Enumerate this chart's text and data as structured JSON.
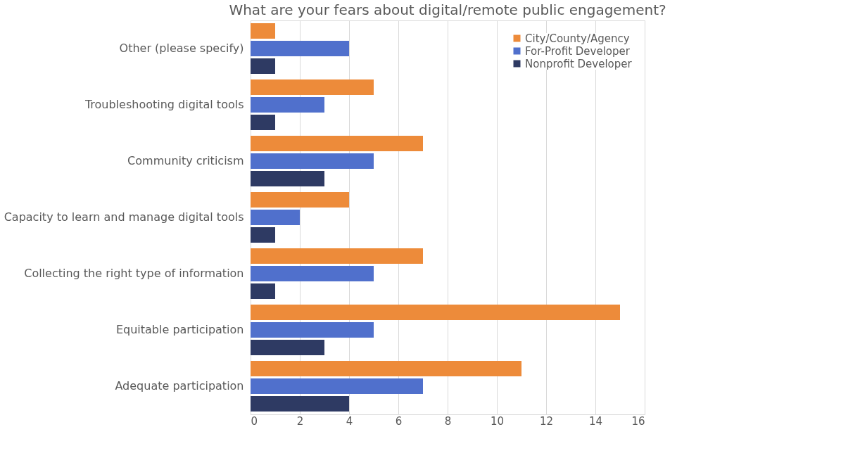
{
  "chart_data": {
    "type": "bar",
    "orientation": "horizontal",
    "title": "What are your fears about digital/remote public engagement?",
    "categories": [
      "Other (please specify)",
      "Troubleshooting digital tools",
      "Community criticism",
      "Capacity to learn and manage digital tools",
      "Collecting the right type of information",
      "Equitable participation",
      "Adequate participation"
    ],
    "series": [
      {
        "name": "City/County/Agency",
        "color": "#ed8b3a",
        "values": [
          1,
          5,
          7,
          4,
          7,
          15,
          11
        ]
      },
      {
        "name": "For-Profit Developer",
        "color": "#5070cc",
        "values": [
          4,
          3,
          5,
          2,
          5,
          5,
          7
        ]
      },
      {
        "name": "Nonprofit Developer",
        "color": "#2e3a63",
        "values": [
          1,
          1,
          3,
          1,
          1,
          3,
          4
        ]
      }
    ],
    "xlim": [
      0,
      16
    ],
    "xticks": [
      0,
      2,
      4,
      6,
      8,
      10,
      12,
      14,
      16
    ],
    "grid": "x",
    "legend": "top right"
  }
}
